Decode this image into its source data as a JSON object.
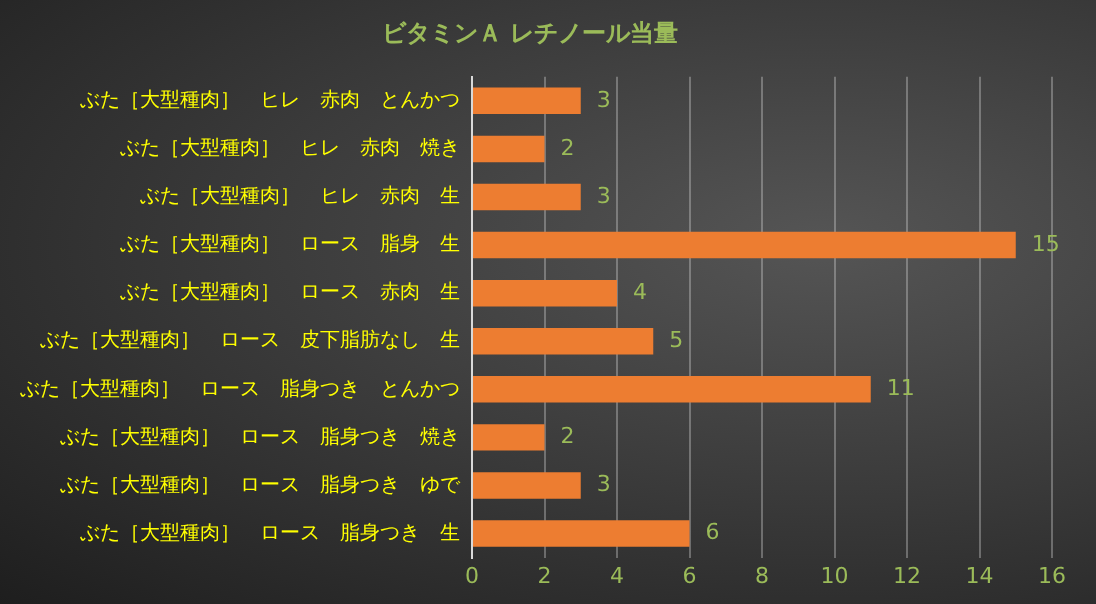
{
  "chart_data": {
    "type": "bar",
    "orientation": "horizontal",
    "title": "ビタミンＡ レチノール当量",
    "categories": [
      "ぶた［大型種肉］　ヒレ　赤肉　とんかつ",
      "ぶた［大型種肉］　ヒレ　赤肉　焼き",
      "ぶた［大型種肉］　ヒレ　赤肉　生",
      "ぶた［大型種肉］　ロース　脂身　生",
      "ぶた［大型種肉］　ロース　赤肉　生",
      "ぶた［大型種肉］　ロース　皮下脂肪なし　生",
      "ぶた［大型種肉］　ロース　脂身つき　とんかつ",
      "ぶた［大型種肉］　ロース　脂身つき　焼き",
      "ぶた［大型種肉］　ロース　脂身つき　ゆで",
      "ぶた［大型種肉］　ロース　脂身つき　生"
    ],
    "values": [
      3,
      2,
      3,
      15,
      4,
      5,
      11,
      2,
      3,
      6
    ],
    "color": "#ed7d31",
    "xlim": [
      0,
      16
    ],
    "xticks": [
      0,
      2,
      4,
      6,
      8,
      10,
      12,
      14,
      16
    ],
    "grid": "x",
    "data_labels": true,
    "legend": false
  }
}
